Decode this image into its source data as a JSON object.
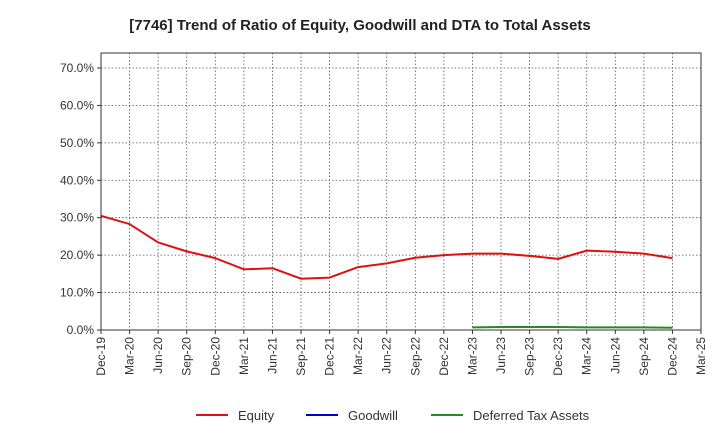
{
  "chart_data": {
    "type": "line",
    "title": "[7746]  Trend of Ratio of Equity, Goodwill and DTA to Total Assets",
    "xlabel": "",
    "ylabel": "",
    "ylim": [
      0,
      0.74
    ],
    "y_ticks": [
      0.0,
      0.1,
      0.2,
      0.3,
      0.4,
      0.5,
      0.6,
      0.7
    ],
    "y_tick_labels": [
      "0.0%",
      "10.0%",
      "20.0%",
      "30.0%",
      "40.0%",
      "50.0%",
      "60.0%",
      "70.0%"
    ],
    "x_tick_labels": [
      "Dec-19",
      "Mar-20",
      "Jun-20",
      "Sep-20",
      "Dec-20",
      "Mar-21",
      "Jun-21",
      "Sep-21",
      "Dec-21",
      "Mar-22",
      "Jun-22",
      "Sep-22",
      "Dec-22",
      "Mar-23",
      "Jun-23",
      "Sep-23",
      "Dec-23",
      "Mar-24",
      "Jun-24",
      "Sep-24",
      "Dec-24",
      "Mar-25"
    ],
    "grid": true,
    "legend_position": "bottom",
    "series": [
      {
        "name": "Equity",
        "color": "#dd1111",
        "start_index": 0,
        "values": [
          0.305,
          0.283,
          0.234,
          0.21,
          0.192,
          0.162,
          0.165,
          0.137,
          0.14,
          0.168,
          0.178,
          0.193,
          0.2,
          0.204,
          0.204,
          0.198,
          0.19,
          0.212,
          0.209,
          0.204,
          0.192
        ]
      },
      {
        "name": "Goodwill",
        "color": "#0000cc",
        "start_index": 0,
        "values": []
      },
      {
        "name": "Deferred Tax Assets",
        "color": "#228b22",
        "start_index": 13,
        "values": [
          0.007,
          0.008,
          0.008,
          0.008,
          0.007,
          0.007,
          0.007,
          0.006
        ]
      }
    ]
  }
}
